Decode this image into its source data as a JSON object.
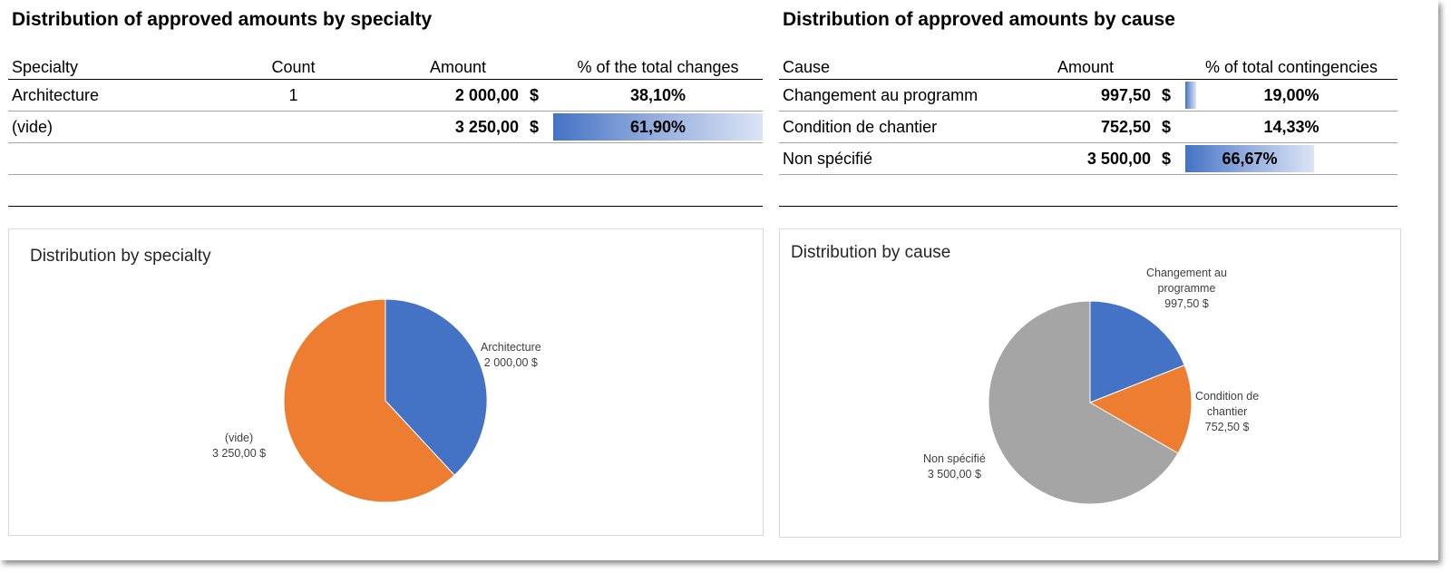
{
  "specialty": {
    "title": "Distribution of approved amounts by specialty",
    "headers": {
      "specialty": "Specialty",
      "count": "Count",
      "amount": "Amount",
      "pct": "% of the total changes"
    },
    "rows": [
      {
        "name": "Architecture",
        "count": "1",
        "amount": "2 000,00",
        "currency": "$",
        "pct": "38,10%",
        "pct_value": 0.381,
        "bar": 0
      },
      {
        "name": "(vide)",
        "count": "",
        "amount": "3 250,00",
        "currency": "$",
        "pct": "61,90%",
        "pct_value": 0.619,
        "bar": 1
      }
    ],
    "chart": {
      "title": "Distribution by specialty",
      "labels": [
        {
          "line1": "Architecture",
          "line2": "2 000,00  $"
        },
        {
          "line1": "(vide)",
          "line2": "3 250,00  $"
        }
      ]
    }
  },
  "cause": {
    "title": "Distribution of approved amounts by cause",
    "headers": {
      "cause": "Cause",
      "amount": "Amount",
      "pct": "% of total contingencies"
    },
    "rows": [
      {
        "name": "Changement au programm",
        "amount": "997,50",
        "currency": "$",
        "pct": "19,00%",
        "pct_value": 0.19,
        "bar": 0.05
      },
      {
        "name": "Condition de chantier",
        "amount": "752,50",
        "currency": "$",
        "pct": "14,33%",
        "pct_value": 0.1433,
        "bar": 0
      },
      {
        "name": "Non spécifié",
        "amount": "3 500,00",
        "currency": "$",
        "pct": "66,67%",
        "pct_value": 0.6667,
        "bar": 1
      }
    ],
    "chart": {
      "title": "Distribution by cause",
      "labels": [
        {
          "line1": "Changement au",
          "line2": "programme",
          "line3": "997,50  $"
        },
        {
          "line1": "Condition de",
          "line2": "chantier",
          "line3": "752,50  $"
        },
        {
          "line1": "Non spécifié",
          "line2": "3 500,00  $"
        }
      ]
    }
  },
  "chart_data": [
    {
      "type": "pie",
      "title": "Distribution by specialty",
      "categories": [
        "Architecture",
        "(vide)"
      ],
      "values": [
        2000.0,
        3250.0
      ],
      "colors": [
        "#4472c4",
        "#ed7d31"
      ]
    },
    {
      "type": "pie",
      "title": "Distribution by cause",
      "categories": [
        "Changement au programme",
        "Condition de chantier",
        "Non spécifié"
      ],
      "values": [
        997.5,
        752.5,
        3500.0
      ],
      "colors": [
        "#4472c4",
        "#ed7d31",
        "#a5a5a5"
      ]
    }
  ]
}
